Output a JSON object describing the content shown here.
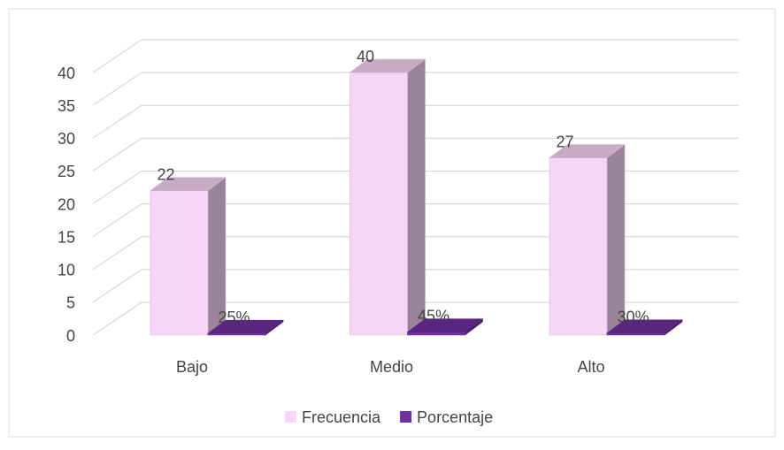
{
  "chart_data": {
    "type": "bar3d",
    "categories": [
      "Bajo",
      "Medio",
      "Alto"
    ],
    "series": [
      {
        "name": "Frecuencia",
        "color": "#f7d5f7",
        "values": [
          22,
          40,
          27
        ]
      },
      {
        "name": "Porcentaje",
        "color": "#7030a0",
        "values": [
          0.25,
          0.45,
          0.3
        ],
        "value_labels": [
          "25%",
          "45%",
          "30%"
        ]
      }
    ],
    "ylim": [
      0,
      40
    ],
    "yticks": [
      0,
      5,
      10,
      15,
      20,
      25,
      30,
      35,
      40
    ],
    "grid": true,
    "legend": "bottom"
  }
}
